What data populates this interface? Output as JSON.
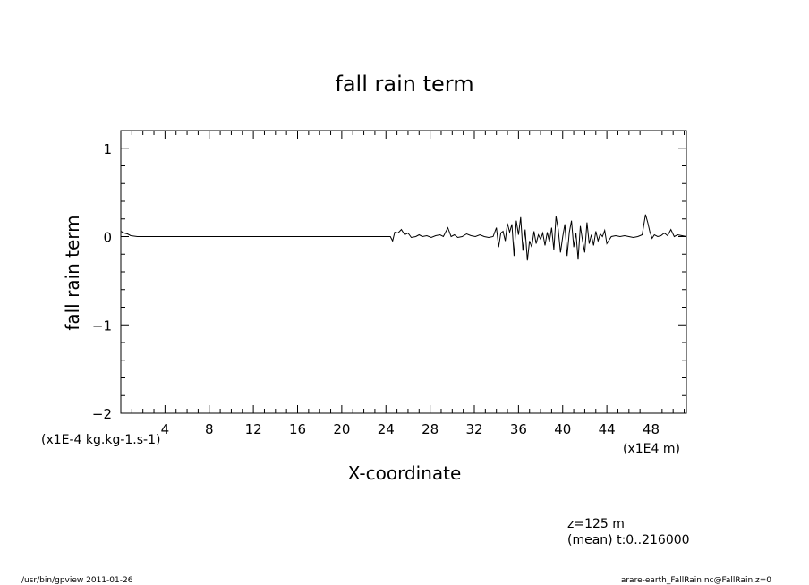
{
  "chart_data": {
    "type": "line",
    "title": "fall rain term",
    "xlabel": "X-coordinate",
    "ylabel": "fall rain term",
    "x_unit": "(x1E4 m)",
    "y_unit": "(x1E-4 kg.kg-1.s-1)",
    "xlim": [
      0,
      51.2
    ],
    "ylim": [
      -2,
      1.2
    ],
    "x_ticks": [
      4,
      8,
      12,
      16,
      20,
      24,
      28,
      32,
      36,
      40,
      44,
      48
    ],
    "x_tick_labels": [
      "4",
      "8",
      "12",
      "16",
      "20",
      "24",
      "28",
      "32",
      "36",
      "40",
      "44",
      "48"
    ],
    "y_ticks": [
      1,
      0,
      -1,
      -2
    ],
    "y_tick_labels": [
      "1",
      "0",
      "−1",
      "−2"
    ],
    "grid": false,
    "series": [
      {
        "x": [
          0.0,
          0.3,
          0.6,
          0.9,
          1.5,
          3,
          6,
          10,
          14,
          18,
          22,
          24,
          24.4,
          24.6,
          24.8,
          25.1,
          25.4,
          25.7,
          26.0,
          26.3,
          26.7,
          27.0,
          27.3,
          27.7,
          28.1,
          28.5,
          28.9,
          29.2,
          29.6,
          29.9,
          30.2,
          30.5,
          30.9,
          31.3,
          31.7,
          32.1,
          32.5,
          32.9,
          33.3,
          33.7,
          34.0,
          34.2,
          34.4,
          34.6,
          34.8,
          35.0,
          35.2,
          35.4,
          35.6,
          35.8,
          36.0,
          36.2,
          36.4,
          36.6,
          36.8,
          37.0,
          37.2,
          37.4,
          37.6,
          37.8,
          38.0,
          38.2,
          38.4,
          38.6,
          38.8,
          39.0,
          39.2,
          39.4,
          39.6,
          39.8,
          40.0,
          40.2,
          40.4,
          40.6,
          40.8,
          41.0,
          41.2,
          41.4,
          41.6,
          41.8,
          42.0,
          42.2,
          42.4,
          42.6,
          42.8,
          43.0,
          43.2,
          43.4,
          43.6,
          43.8,
          44.0,
          44.4,
          44.8,
          45.2,
          45.6,
          46.0,
          46.4,
          46.8,
          47.2,
          47.5,
          47.7,
          47.9,
          48.1,
          48.3,
          48.6,
          48.9,
          49.2,
          49.5,
          49.8,
          50.1,
          50.4,
          50.8,
          51.2
        ],
        "y": [
          0.06,
          0.04,
          0.03,
          0.01,
          0.0,
          0.0,
          0.0,
          0.0,
          0.0,
          0.0,
          0.0,
          0.0,
          0.0,
          -0.05,
          0.05,
          0.04,
          0.08,
          0.02,
          0.04,
          -0.01,
          0.0,
          0.02,
          0.0,
          0.01,
          -0.01,
          0.01,
          0.02,
          0.0,
          0.1,
          0.0,
          0.02,
          -0.01,
          0.0,
          0.03,
          0.01,
          0.0,
          0.02,
          0.0,
          -0.01,
          0.0,
          0.1,
          -0.12,
          0.04,
          0.06,
          -0.05,
          0.15,
          0.05,
          0.14,
          -0.22,
          0.18,
          0.02,
          0.22,
          -0.16,
          0.08,
          -0.27,
          -0.05,
          -0.12,
          0.06,
          -0.08,
          0.02,
          -0.03,
          0.04,
          -0.1,
          0.05,
          -0.06,
          0.1,
          -0.15,
          0.23,
          0.08,
          -0.18,
          0.0,
          0.14,
          -0.22,
          0.05,
          0.18,
          -0.12,
          0.04,
          -0.26,
          0.12,
          -0.05,
          -0.18,
          0.16,
          -0.08,
          0.02,
          -0.1,
          0.06,
          -0.05,
          0.03,
          0.0,
          0.07,
          -0.08,
          0.0,
          0.01,
          0.0,
          0.01,
          0.0,
          -0.01,
          0.0,
          0.02,
          0.25,
          0.16,
          0.05,
          -0.02,
          0.02,
          0.0,
          0.01,
          0.04,
          0.01,
          0.08,
          0.0,
          0.02,
          0.01,
          0.0
        ]
      }
    ]
  },
  "annotations": {
    "level": "z=125  m",
    "mean": "(mean) t:0..216000",
    "footer_left": "/usr/bin/gpview   2011-01-26",
    "footer_right": "arare-earth_FallRain.nc@FallRain,z=0"
  }
}
